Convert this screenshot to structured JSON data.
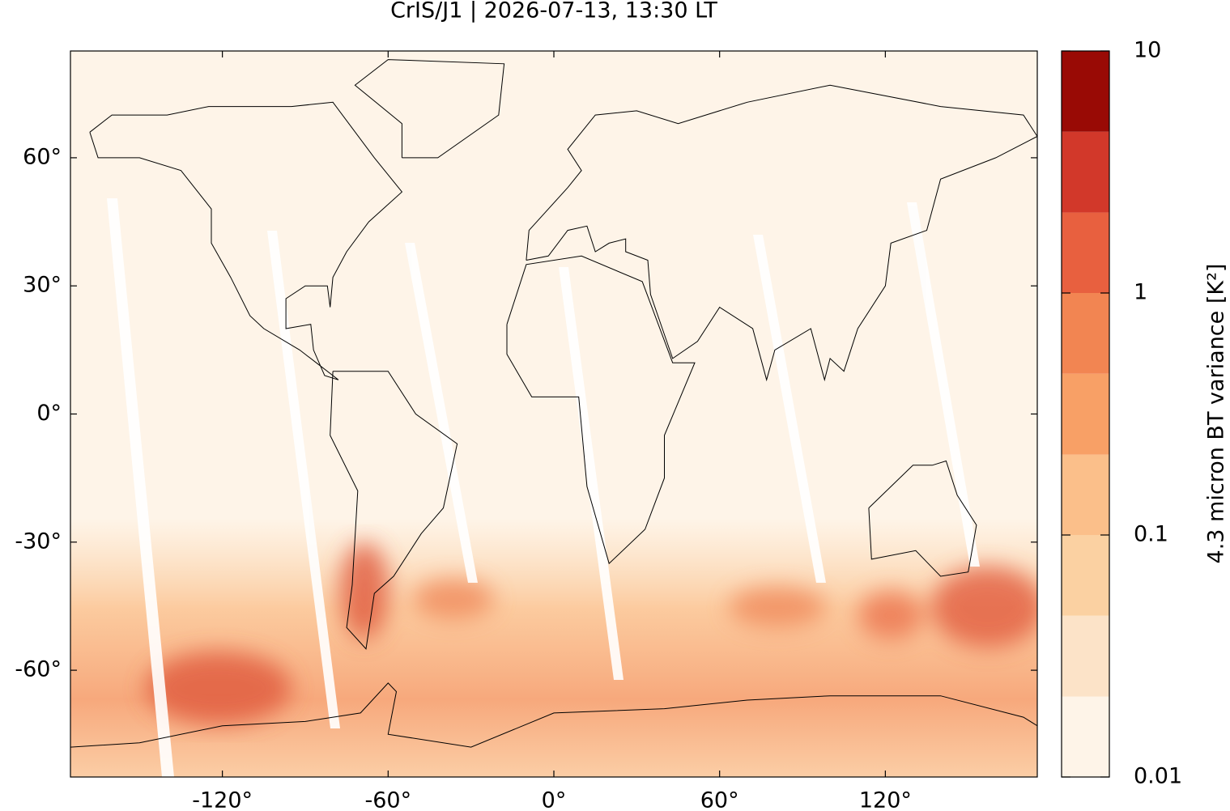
{
  "chart_data": {
    "type": "map",
    "title": "CrIS/J1 | 2026-07-13, 13:30 LT",
    "xlim": [
      -175,
      175
    ],
    "ylim": [
      -85,
      85
    ],
    "xticks": [
      {
        "value": -120,
        "label": "-120°"
      },
      {
        "value": -60,
        "label": "-60°"
      },
      {
        "value": 0,
        "label": "0°"
      },
      {
        "value": 60,
        "label": "60°"
      },
      {
        "value": 120,
        "label": "120°"
      }
    ],
    "yticks": [
      {
        "value": -60,
        "label": "-60°"
      },
      {
        "value": -30,
        "label": "-30°"
      },
      {
        "value": 0,
        "label": "0°"
      },
      {
        "value": 30,
        "label": "30°"
      },
      {
        "value": 60,
        "label": "60°"
      }
    ],
    "colorbar": {
      "label": "4.3 micron BT variance [K²]",
      "log_scale": true,
      "lim": [
        0.01,
        10
      ],
      "ticks": [
        0.01,
        0.1,
        1,
        10
      ],
      "levels": [
        0.01,
        0.0215,
        0.0464,
        0.1,
        0.215,
        0.464,
        1,
        2.15,
        4.64,
        10
      ],
      "colors": [
        "#fef4e8",
        "#fce3c8",
        "#fbd1a2",
        "#fbbf8a",
        "#f8a066",
        "#f28552",
        "#e8603f",
        "#d2382a",
        "#990a05"
      ]
    }
  }
}
